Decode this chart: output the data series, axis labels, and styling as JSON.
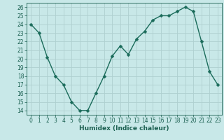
{
  "x": [
    0,
    1,
    2,
    3,
    4,
    5,
    6,
    7,
    8,
    9,
    10,
    11,
    12,
    13,
    14,
    15,
    16,
    17,
    18,
    19,
    20,
    21,
    22,
    23
  ],
  "y": [
    24,
    23,
    20.2,
    18,
    17,
    15,
    14,
    14,
    16,
    18,
    20.3,
    21.5,
    20.5,
    22.3,
    23.2,
    24.5,
    25,
    25,
    25.5,
    26,
    25.5,
    22,
    18.5,
    17
  ],
  "xlabel": "Humidex (Indice chaleur)",
  "ylim": [
    13.5,
    26.5
  ],
  "xlim": [
    -0.5,
    23.5
  ],
  "yticks": [
    14,
    15,
    16,
    17,
    18,
    19,
    20,
    21,
    22,
    23,
    24,
    25,
    26
  ],
  "xticks": [
    0,
    1,
    2,
    3,
    4,
    5,
    6,
    7,
    8,
    9,
    10,
    11,
    12,
    13,
    14,
    15,
    16,
    17,
    18,
    19,
    20,
    21,
    22,
    23
  ],
  "line_color": "#1a6b5a",
  "marker_color": "#1a6b5a",
  "bg_color": "#c8e8e8",
  "grid_color": "#aed0d0",
  "tick_label_color": "#1a5f50",
  "xlabel_color": "#1a5f50",
  "marker_size": 2.5,
  "line_width": 1.0,
  "tick_fontsize": 5.5,
  "xlabel_fontsize": 6.5
}
